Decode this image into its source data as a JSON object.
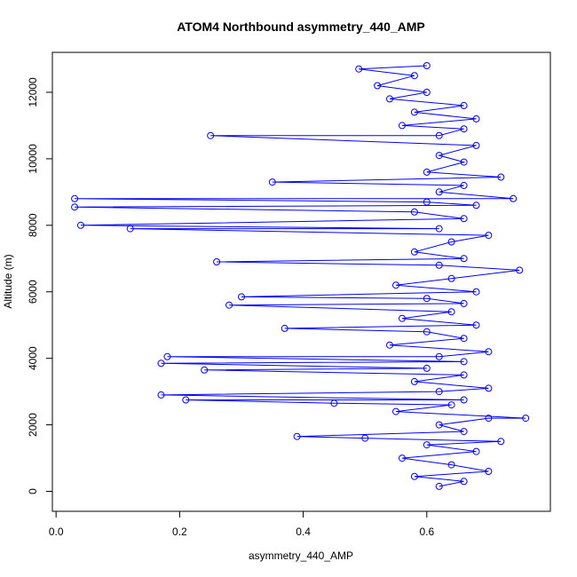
{
  "chart_data": {
    "type": "scatter",
    "title": "ATOM4 Northbound asymmetry_440_AMP",
    "xlabel": "asymmetry_440_AMP",
    "ylabel": "Altitude (m)",
    "xlim": [
      -0.006,
      0.8
    ],
    "ylim": [
      -600,
      13200
    ],
    "x_ticks": [
      0.0,
      0.2,
      0.4,
      0.6
    ],
    "x_tick_labels": [
      "0.0",
      "0.2",
      "0.4",
      "0.6"
    ],
    "y_ticks": [
      0,
      2000,
      4000,
      6000,
      8000,
      10000,
      12000
    ],
    "y_tick_labels": [
      "0",
      "2000",
      "4000",
      "6000",
      "8000",
      "10000",
      "12000"
    ],
    "grid": false,
    "legend": "none",
    "series_color": "#0000ff",
    "marker": "open-circle",
    "line": true,
    "series": [
      {
        "points": [
          [
            0.62,
            150
          ],
          [
            0.66,
            300
          ],
          [
            0.58,
            450
          ],
          [
            0.7,
            600
          ],
          [
            0.64,
            800
          ],
          [
            0.56,
            1000
          ],
          [
            0.68,
            1200
          ],
          [
            0.6,
            1400
          ],
          [
            0.72,
            1500
          ],
          [
            0.5,
            1600
          ],
          [
            0.39,
            1650
          ],
          [
            0.66,
            1800
          ],
          [
            0.62,
            2000
          ],
          [
            0.7,
            2200
          ],
          [
            0.76,
            2200
          ],
          [
            0.55,
            2400
          ],
          [
            0.64,
            2600
          ],
          [
            0.45,
            2650
          ],
          [
            0.21,
            2750
          ],
          [
            0.66,
            2750
          ],
          [
            0.17,
            2900
          ],
          [
            0.62,
            3000
          ],
          [
            0.7,
            3100
          ],
          [
            0.58,
            3300
          ],
          [
            0.66,
            3500
          ],
          [
            0.24,
            3650
          ],
          [
            0.6,
            3700
          ],
          [
            0.17,
            3850
          ],
          [
            0.66,
            3900
          ],
          [
            0.18,
            4050
          ],
          [
            0.62,
            4050
          ],
          [
            0.7,
            4200
          ],
          [
            0.54,
            4400
          ],
          [
            0.66,
            4600
          ],
          [
            0.6,
            4800
          ],
          [
            0.37,
            4900
          ],
          [
            0.68,
            5000
          ],
          [
            0.56,
            5200
          ],
          [
            0.64,
            5400
          ],
          [
            0.28,
            5600
          ],
          [
            0.66,
            5650
          ],
          [
            0.6,
            5800
          ],
          [
            0.3,
            5850
          ],
          [
            0.68,
            6000
          ],
          [
            0.55,
            6200
          ],
          [
            0.64,
            6400
          ],
          [
            0.75,
            6650
          ],
          [
            0.62,
            6800
          ],
          [
            0.26,
            6900
          ],
          [
            0.66,
            7000
          ],
          [
            0.58,
            7200
          ],
          [
            0.64,
            7500
          ],
          [
            0.7,
            7700
          ],
          [
            0.12,
            7900
          ],
          [
            0.62,
            7900
          ],
          [
            0.04,
            8000
          ],
          [
            0.66,
            8200
          ],
          [
            0.58,
            8400
          ],
          [
            0.03,
            8550
          ],
          [
            0.68,
            8600
          ],
          [
            0.6,
            8700
          ],
          [
            0.03,
            8800
          ],
          [
            0.74,
            8800
          ],
          [
            0.62,
            9000
          ],
          [
            0.66,
            9200
          ],
          [
            0.35,
            9300
          ],
          [
            0.72,
            9450
          ],
          [
            0.6,
            9600
          ],
          [
            0.66,
            9900
          ],
          [
            0.62,
            10100
          ],
          [
            0.68,
            10400
          ],
          [
            0.25,
            10700
          ],
          [
            0.62,
            10700
          ],
          [
            0.66,
            10900
          ],
          [
            0.56,
            11000
          ],
          [
            0.68,
            11200
          ],
          [
            0.58,
            11400
          ],
          [
            0.66,
            11600
          ],
          [
            0.54,
            11800
          ],
          [
            0.6,
            12000
          ],
          [
            0.52,
            12200
          ],
          [
            0.58,
            12500
          ],
          [
            0.49,
            12700
          ],
          [
            0.6,
            12800
          ]
        ]
      }
    ]
  }
}
